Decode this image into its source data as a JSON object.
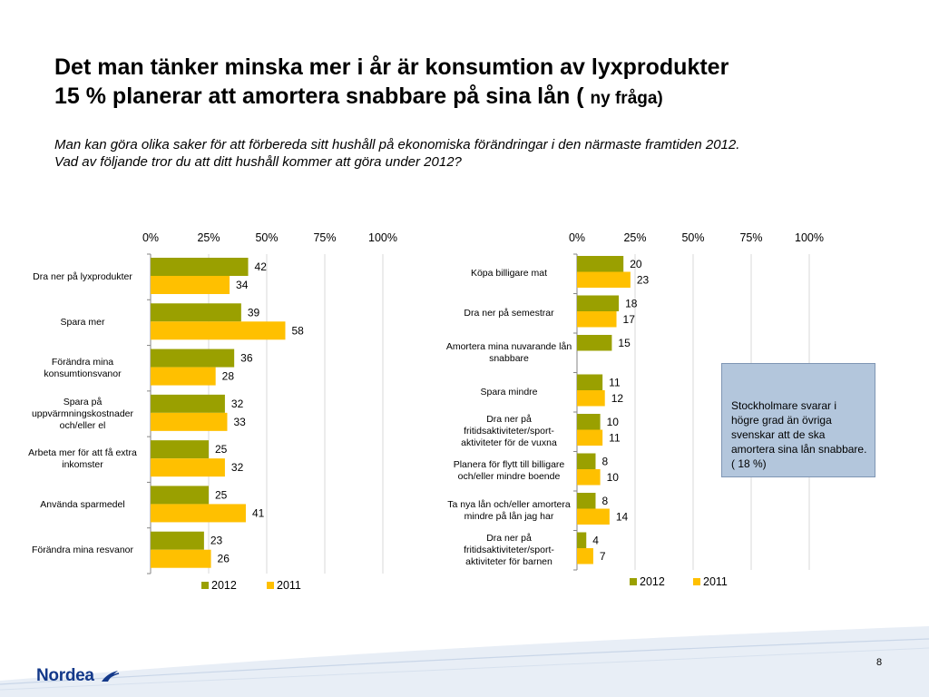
{
  "slide": {
    "title_line1": "Det man tänker minska mer i år är konsumtion av lyxprodukter",
    "title_line2": "15 % planerar att amortera snabbare på sina lån (",
    "title_line2_small": "ny fråga)",
    "subtitle_line1": "Man kan göra olika saker för att förbereda sitt hushåll på ekonomiska förändringar i den närmaste framtiden 2012.",
    "subtitle_line2": "Vad av följande tror du att ditt hushåll kommer att göra under 2012?",
    "info_box": "Stockholmare svarar i högre grad än övriga svenskar att de ska amortera sina lån snabbare. ( 18 %)",
    "page_number": "8",
    "logo_text": "Nordea"
  },
  "colors": {
    "series_2012": "#9aa000",
    "series_2011": "#ffc000",
    "gridline": "#d9d9d9",
    "axis": "#868686",
    "logo": "#14398a"
  },
  "chart_data": [
    {
      "type": "bar",
      "orientation": "horizontal",
      "x_ticks": [
        "0%",
        "25%",
        "50%",
        "75%",
        "100%"
      ],
      "xlim": [
        0,
        100
      ],
      "legend_position": "bottom",
      "categories": [
        "Dra ner på lyxprodukter",
        "Spara mer",
        "Förändra mina konsumtionsvanor",
        "Spara på uppvärmningskostnader och/eller el",
        "Arbeta mer för att få extra inkomster",
        "Använda sparmedel",
        "Förändra mina resvanor"
      ],
      "series": [
        {
          "name": "2012",
          "values": [
            42,
            39,
            36,
            32,
            25,
            25,
            23
          ]
        },
        {
          "name": "2011",
          "values": [
            34,
            58,
            28,
            33,
            32,
            41,
            26
          ]
        }
      ]
    },
    {
      "type": "bar",
      "orientation": "horizontal",
      "x_ticks": [
        "0%",
        "25%",
        "50%",
        "75%",
        "100%"
      ],
      "xlim": [
        0,
        100
      ],
      "legend_position": "bottom",
      "categories": [
        "Köpa billigare mat",
        "Dra ner på semestrar",
        "Amortera mina nuvarande lån snabbare",
        "Spara mindre",
        "Dra ner på fritidsaktiviteter/sport-aktiviteter för de vuxna",
        "Planera för flytt till billigare och/eller mindre boende",
        "Ta nya lån och/eller amortera mindre på lån jag har",
        "Dra ner på fritidsaktiviteter/sport-aktiviteter för barnen"
      ],
      "series": [
        {
          "name": "2012",
          "values": [
            20,
            18,
            15,
            11,
            10,
            8,
            8,
            4
          ]
        },
        {
          "name": "2011",
          "values": [
            23,
            17,
            null,
            12,
            11,
            10,
            14,
            7
          ]
        }
      ]
    }
  ]
}
